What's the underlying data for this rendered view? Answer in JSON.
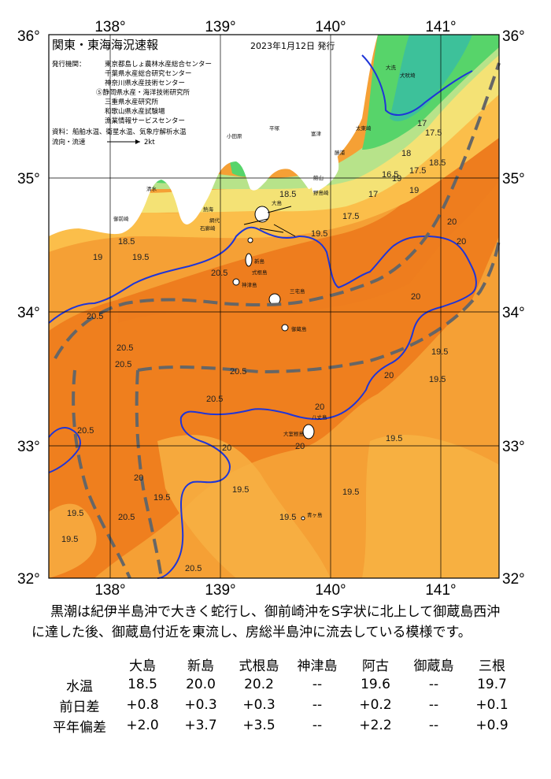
{
  "map": {
    "title": "関東・東海海況速報",
    "issued": "2023年1月12日 発行",
    "issuer_label": "発行機関：",
    "issuers": [
      "東京都島しょ農林水産総合センター",
      "千葉県水産総合研究センター",
      "神奈川県水産技術センター",
      "静岡県水産・海洋技術研究所",
      "三重県水産研究所",
      "和歌山県水産試験場",
      "漁業情報サービスセンター"
    ],
    "materials_label": "資料：",
    "materials": "船舶水温、衛星水温、気象庁解析水温",
    "flow_label": "流向・流速",
    "flow_scale": "2kt",
    "lon_labels": [
      "138°",
      "139°",
      "140°",
      "141°"
    ],
    "lat_labels": [
      "36°",
      "35°",
      "34°",
      "33°",
      "32°"
    ],
    "contour_labels": [
      "16.5",
      "17",
      "17.5",
      "18",
      "18.5",
      "19",
      "19.5",
      "20",
      "20.5",
      "19.5",
      "19",
      "18.5",
      "17.5",
      "20.5",
      "20",
      "19.5",
      "20.5",
      "20",
      "19.5",
      "20.5",
      "20.5",
      "20.5",
      "20",
      "19.5",
      "20",
      "19.5",
      "20.5",
      "19.5",
      "19.5",
      "20",
      "19.5",
      "19.5",
      "20.5",
      "20.5",
      "19.5",
      "20",
      "20",
      "18.5",
      "19",
      "17.5",
      "17"
    ],
    "place_labels": [
      "大島",
      "新島",
      "式根島",
      "神津島",
      "三宅島",
      "御蔵島",
      "八丈島",
      "大室根島",
      "青ヶ島",
      "平塚",
      "富津",
      "小田原",
      "館山",
      "野島崎",
      "熱海",
      "網代",
      "石廊崎",
      "御前崎",
      "清水",
      "太東崎",
      "勝浦",
      "犬吠埼",
      "大洗"
    ],
    "colors": {
      "warm_dark": "#ee7d1e",
      "warm": "#f5a035",
      "warm_light": "#fbbe4a",
      "yellow": "#f4e275",
      "green_light": "#b7e38a",
      "green": "#57d46a",
      "teal": "#3bbfa0",
      "land": "#ffffff",
      "kuroshio_path": "#666666",
      "warm_front": "#1f35d8"
    }
  },
  "summary": {
    "line1": "黒潮は紀伊半島沖で大きく蛇行し、御前崎沖をS字状に北上して御蔵島西沖",
    "line2": "に達した後、御蔵島付近を東流し、房総半島沖に流去している模様です。"
  },
  "stats": {
    "headers": [
      "大島",
      "新島",
      "式根島",
      "神津島",
      "阿古",
      "御蔵島",
      "三根"
    ],
    "rows": [
      {
        "label": "水温",
        "values": [
          "18.5",
          "20.0",
          "20.2",
          "‐‐",
          "19.6",
          "‐‐",
          "19.7"
        ]
      },
      {
        "label": "前日差",
        "values": [
          "+0.8",
          "+0.3",
          "+0.3",
          "‐‐",
          "+0.2",
          "‐‐",
          "+0.1"
        ]
      },
      {
        "label": "平年偏差",
        "values": [
          "+2.0",
          "+3.7",
          "+3.5",
          "‐‐",
          "+2.2",
          "‐‐",
          "+0.9"
        ]
      }
    ]
  }
}
